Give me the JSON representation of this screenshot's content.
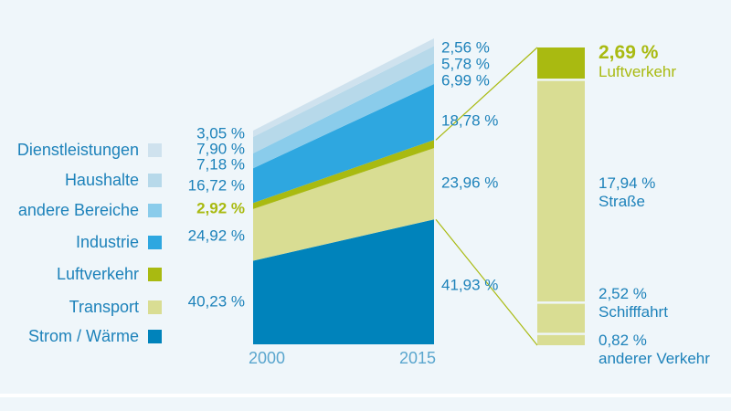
{
  "colors": {
    "background": "#eff6fa",
    "label_blue": "#1d82ba",
    "axis_blue": "#5aa6ce",
    "accent_green": "#a9ba11",
    "divider": "#ffffff"
  },
  "x_axis": {
    "labels": [
      "2000",
      "2015"
    ]
  },
  "chart_data": {
    "type": "area",
    "categories": [
      "2000",
      "2015"
    ],
    "legend_position": "left",
    "grid": false,
    "series": [
      {
        "name": "Dienstleistungen",
        "color": "#cfe2ee",
        "values": [
          3.05,
          2.56
        ],
        "value_labels": [
          "3,05 %",
          "2,56 %"
        ],
        "highlight": false
      },
      {
        "name": "Haushalte",
        "color": "#b7d9ea",
        "values": [
          7.9,
          5.78
        ],
        "value_labels": [
          "7,90 %",
          "5,78 %"
        ],
        "highlight": false
      },
      {
        "name": "andere Bereiche",
        "color": "#8acceb",
        "values": [
          7.18,
          6.99
        ],
        "value_labels": [
          "7,18 %",
          "6,99 %"
        ],
        "highlight": false
      },
      {
        "name": "Industrie",
        "color": "#2ea7e0",
        "values": [
          16.72,
          18.78
        ],
        "value_labels": [
          "16,72 %",
          "18,78 %"
        ],
        "highlight": false
      },
      {
        "name": "Luftverkehr",
        "color": "#a9ba11",
        "values": [
          2.92,
          2.69
        ],
        "value_labels": [
          "2,92 %",
          null
        ],
        "highlight": true
      },
      {
        "name": "Transport",
        "color": "#d9dd93",
        "values": [
          24.92,
          23.96
        ],
        "value_labels": [
          "24,92 %",
          "23,96 %"
        ],
        "highlight": false
      },
      {
        "name": "Strom / Wärme",
        "color": "#0083bb",
        "values": [
          40.23,
          41.93
        ],
        "value_labels": [
          "40,23 %",
          "41,93 %"
        ],
        "highlight": false
      }
    ],
    "breakout": {
      "year": "2015",
      "segments": [
        {
          "name": "Luftverkehr",
          "value": 2.69,
          "value_label": "2,69 %",
          "color": "#a9ba11",
          "highlight": true
        },
        {
          "name": "Straße",
          "value": 17.94,
          "value_label": "17,94 %",
          "color": "#d9dd93",
          "highlight": false
        },
        {
          "name": "Schifffahrt",
          "value": 2.52,
          "value_label": "2,52 %",
          "color": "#d9dd93",
          "highlight": false
        },
        {
          "name": "anderer Verkehr",
          "value": 0.82,
          "value_label": "0,82 %",
          "color": "#d9dd93",
          "highlight": false
        }
      ]
    }
  }
}
